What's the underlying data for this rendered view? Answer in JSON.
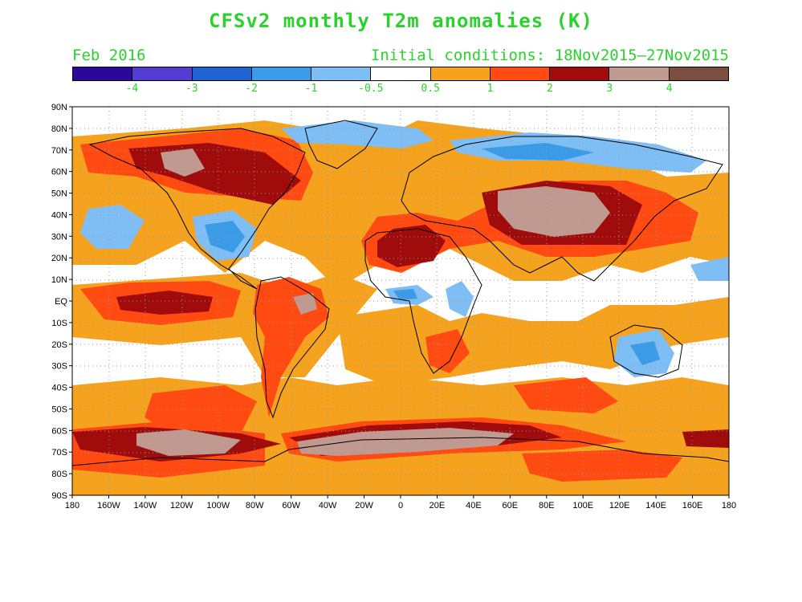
{
  "title": "CFSv2 monthly T2m anomalies (K)",
  "valid_month": "Feb 2016",
  "initial_conditions": "Initial conditions: 18Nov2015–27Nov2015",
  "colorbar": {
    "colors": [
      "#2c079a",
      "#523cd2",
      "#1f64d2",
      "#3c9be6",
      "#7fbef4",
      "#ffffff",
      "#f5a21e",
      "#ff4a12",
      "#a00c0c",
      "#c09a90",
      "#7a4f3f"
    ],
    "labels": [
      "-4",
      "-3",
      "-2",
      "-1",
      "-0.5",
      "0.5",
      "1",
      "2",
      "3",
      "4"
    ]
  },
  "lat_labels": [
    "90N",
    "80N",
    "70N",
    "60N",
    "50N",
    "40N",
    "30N",
    "20N",
    "10N",
    "EQ",
    "10S",
    "20S",
    "30S",
    "40S",
    "50S",
    "60S",
    "70S",
    "80S",
    "90S"
  ],
  "lon_labels": [
    "180",
    "160W",
    "140W",
    "120W",
    "100W",
    "80W",
    "60W",
    "40W",
    "20W",
    "0",
    "20E",
    "40E",
    "60E",
    "80E",
    "100E",
    "120E",
    "140E",
    "160E",
    "180"
  ]
}
